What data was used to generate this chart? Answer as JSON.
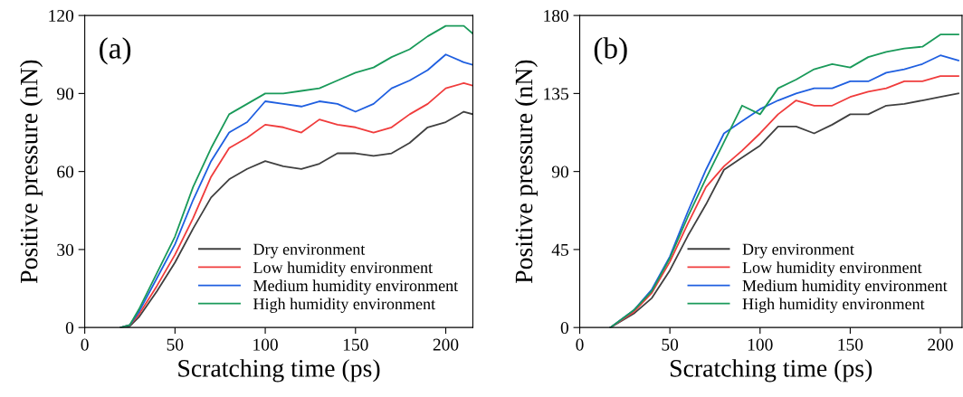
{
  "chart_data": [
    {
      "type": "line",
      "annotations": [
        "(a)"
      ],
      "xlabel": "Scratching time (ps)",
      "ylabel": "Positive pressure (nN)",
      "x": [
        20,
        25,
        30,
        40,
        50,
        60,
        70,
        80,
        90,
        100,
        110,
        120,
        130,
        140,
        150,
        160,
        170,
        180,
        190,
        200,
        210,
        215
      ],
      "series": [
        {
          "name": "Dry environment",
          "color": "#404040",
          "values": [
            0,
            0.5,
            4,
            14,
            25,
            38,
            50,
            57,
            61,
            64,
            62,
            61,
            63,
            67,
            67,
            66,
            67,
            71,
            77,
            79,
            83,
            82
          ]
        },
        {
          "name": "Low humidity environment",
          "color": "#f03c3c",
          "values": [
            0,
            1,
            5,
            16,
            28,
            42,
            58,
            69,
            73,
            78,
            77,
            75,
            80,
            78,
            77,
            75,
            77,
            82,
            86,
            92,
            94,
            93
          ]
        },
        {
          "name": "Medium humidity environment",
          "color": "#1f5fe0",
          "values": [
            0,
            1,
            6,
            19,
            32,
            49,
            64,
            75,
            79,
            87,
            86,
            85,
            87,
            86,
            83,
            86,
            92,
            95,
            99,
            105,
            102,
            101
          ]
        },
        {
          "name": "High humidity environment",
          "color": "#1a9a5a",
          "values": [
            0,
            1,
            7,
            21,
            35,
            54,
            69,
            82,
            86,
            90,
            90,
            91,
            92,
            95,
            98,
            100,
            104,
            107,
            112,
            116,
            116,
            113
          ]
        }
      ],
      "xlim": [
        0,
        215
      ],
      "ylim": [
        0,
        120
      ],
      "xticks": [
        0,
        50,
        100,
        150,
        200
      ],
      "yticks": [
        0,
        30,
        60,
        90,
        120
      ],
      "legend": "bottom right",
      "grid": false
    },
    {
      "type": "line",
      "annotations": [
        "(b)"
      ],
      "xlabel": "Scratching time (ps)",
      "ylabel": "Positive pressure (nN)",
      "x": [
        17,
        30,
        40,
        50,
        60,
        70,
        80,
        90,
        100,
        110,
        120,
        130,
        140,
        150,
        160,
        170,
        180,
        190,
        200,
        210
      ],
      "series": [
        {
          "name": "Dry environment",
          "color": "#404040",
          "values": [
            0,
            8,
            17,
            33,
            53,
            71,
            91,
            98,
            105,
            116,
            116,
            112,
            117,
            123,
            123,
            128,
            129,
            131,
            133,
            135
          ]
        },
        {
          "name": "Low humidity environment",
          "color": "#f03c3c",
          "values": [
            0,
            9,
            20,
            38,
            60,
            81,
            93,
            102,
            112,
            123,
            131,
            128,
            128,
            133,
            136,
            138,
            142,
            142,
            145,
            145
          ]
        },
        {
          "name": "Medium humidity environment",
          "color": "#1f5fe0",
          "values": [
            0,
            10,
            22,
            41,
            67,
            91,
            112,
            119,
            126,
            131,
            135,
            138,
            138,
            142,
            142,
            147,
            149,
            152,
            157,
            154
          ]
        },
        {
          "name": "High humidity environment",
          "color": "#1a9a5a",
          "values": [
            0,
            10,
            21,
            40,
            64,
            86,
            107,
            128,
            123,
            138,
            143,
            149,
            152,
            150,
            156,
            159,
            161,
            162,
            169,
            169
          ]
        }
      ],
      "xlim": [
        0,
        212
      ],
      "ylim": [
        0,
        180
      ],
      "xticks": [
        0,
        50,
        100,
        150,
        200
      ],
      "yticks": [
        0,
        45,
        90,
        135,
        180
      ],
      "legend": "bottom right",
      "grid": false
    }
  ]
}
